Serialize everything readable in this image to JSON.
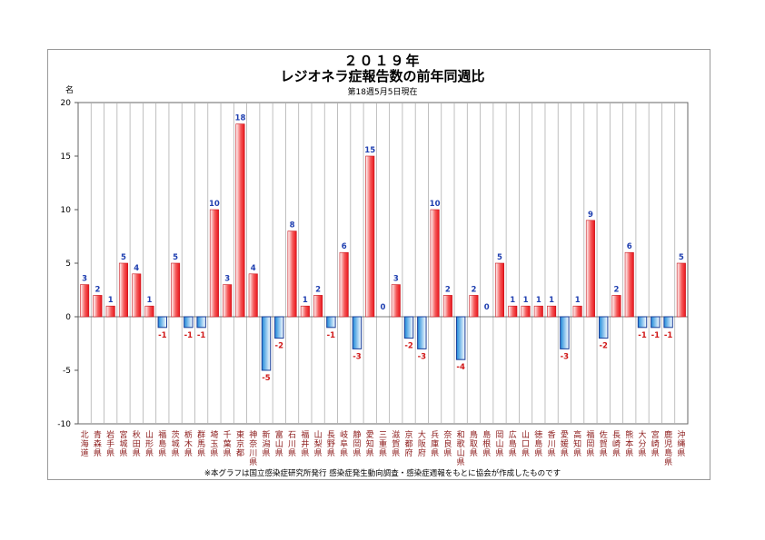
{
  "chart_data": {
    "type": "bar",
    "title": "２０１９年",
    "subtitle": "レジオネラ症報告数の前年同週比",
    "caption": "第18週5月5日現在",
    "ylabel": "名",
    "ylim": [
      -10,
      20
    ],
    "yticks": [
      20,
      15,
      10,
      5,
      0,
      -5,
      -10
    ],
    "grid": true,
    "colors": {
      "positive": "#e8141b",
      "negative": "#1e88d8",
      "label_positive": "#1f3fb0",
      "label_negative": "#d01818",
      "category": "#8b1a1a",
      "grid": "#b0b0b0"
    },
    "categories": [
      "北海道",
      "青森県",
      "岩手県",
      "宮城県",
      "秋田県",
      "山形県",
      "福島県",
      "茨城県",
      "栃木県",
      "群馬県",
      "埼玉県",
      "千葉県",
      "東京都",
      "神奈川県",
      "新潟県",
      "富山県",
      "石川県",
      "福井県",
      "山梨県",
      "長野県",
      "岐阜県",
      "静岡県",
      "愛知県",
      "三重県",
      "滋賀県",
      "京都府",
      "大阪府",
      "兵庫県",
      "奈良県",
      "和歌山県",
      "鳥取県",
      "島根県",
      "岡山県",
      "広島県",
      "山口県",
      "徳島県",
      "香川県",
      "愛媛県",
      "高知県",
      "福岡県",
      "佐賀県",
      "長崎県",
      "熊本県",
      "大分県",
      "宮崎県",
      "鹿児島県",
      "沖縄県"
    ],
    "values": [
      3,
      2,
      1,
      5,
      4,
      1,
      -1,
      5,
      -1,
      -1,
      10,
      3,
      18,
      4,
      -5,
      -2,
      8,
      1,
      2,
      -1,
      6,
      -3,
      15,
      0,
      3,
      -2,
      -3,
      10,
      2,
      -4,
      2,
      0,
      5,
      1,
      1,
      1,
      1,
      -3,
      1,
      9,
      -2,
      2,
      6,
      -1,
      -1,
      -1,
      5
    ]
  },
  "footnote": "※本グラフは国立感染症研究所発行 感染症発生動向調査・感染症週報をもとに協会が作成したものです"
}
